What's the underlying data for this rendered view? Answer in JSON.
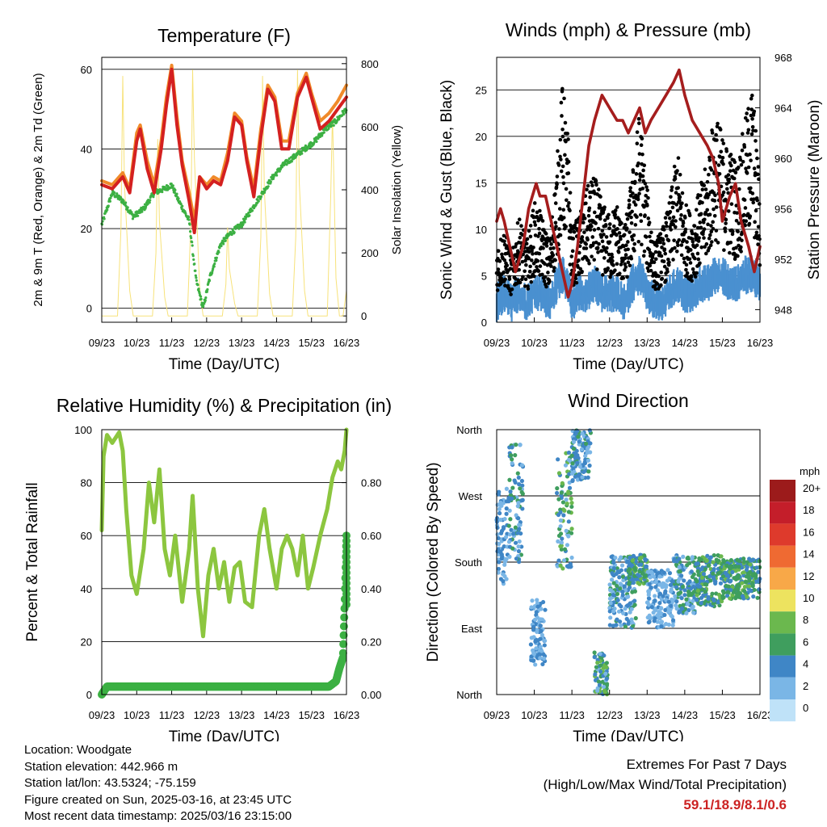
{
  "x_ticks": [
    "09/23",
    "10/23",
    "11/23",
    "12/23",
    "13/23",
    "14/23",
    "15/23",
    "16/23"
  ],
  "colors": {
    "red": "#d42020",
    "orange": "#f08a2a",
    "green": "#3cb043",
    "yellow": "#f7e27a",
    "maroon": "#a51d1d",
    "gust": "#000000",
    "wind": "#4a90d0",
    "rh": "#8cc63f",
    "precip": "#3cb043"
  },
  "chart_data": [
    {
      "id": "temp",
      "type": "line",
      "title": "Temperature (F)",
      "xlabel": "Time (Day/UTC)",
      "ylabel": "2m & 9m T (Red, Orange) & 2m Td (Green)",
      "y2label": "Solar Insolation (Yellow)",
      "ylim": [
        -3.5,
        63
      ],
      "y_ticks": [
        0,
        20,
        40,
        60
      ],
      "y2lim": [
        -20,
        820
      ],
      "y2_ticks": [
        0,
        200,
        400,
        600,
        800
      ],
      "grid": true,
      "series": [
        {
          "key": "t2m",
          "axis": "left",
          "color": "red",
          "x": [
            9,
            9.3,
            9.6,
            9.8,
            10.0,
            10.1,
            10.3,
            10.5,
            10.7,
            10.85,
            11.0,
            11.15,
            11.3,
            11.5,
            11.65,
            11.8,
            12.0,
            12.2,
            12.4,
            12.6,
            12.8,
            13.0,
            13.15,
            13.35,
            13.55,
            13.75,
            13.95,
            14.15,
            14.35,
            14.6,
            14.85,
            15.0,
            15.25,
            15.5,
            15.75,
            16.0
          ],
          "values": [
            31,
            30,
            33,
            29,
            42,
            45,
            35,
            29,
            40,
            51,
            60,
            46,
            36,
            27,
            19,
            33,
            30,
            32,
            31,
            37,
            48,
            46,
            37,
            28,
            43,
            55,
            52,
            40,
            40,
            53,
            58,
            53,
            45,
            47,
            50,
            53
          ]
        },
        {
          "key": "t9m",
          "axis": "left",
          "color": "orange",
          "x": [
            9,
            9.3,
            9.6,
            9.8,
            10.0,
            10.1,
            10.3,
            10.5,
            10.7,
            10.85,
            11.0,
            11.15,
            11.3,
            11.5,
            11.65,
            11.8,
            12.0,
            12.2,
            12.4,
            12.6,
            12.8,
            13.0,
            13.15,
            13.35,
            13.55,
            13.75,
            13.95,
            14.15,
            14.35,
            14.6,
            14.85,
            15.0,
            15.25,
            15.5,
            15.75,
            16.0
          ],
          "values": [
            32,
            31,
            34,
            30,
            44,
            46,
            37,
            31,
            42,
            53,
            61,
            48,
            37,
            29,
            22,
            33,
            31,
            33,
            32,
            39,
            49,
            47,
            38,
            30,
            45,
            56,
            53,
            42,
            42,
            54,
            59,
            54,
            47,
            49,
            52,
            56
          ]
        },
        {
          "key": "td2m",
          "axis": "left",
          "color": "green",
          "x": [
            9,
            9.3,
            9.6,
            9.9,
            10.2,
            10.5,
            10.8,
            11.0,
            11.2,
            11.5,
            11.7,
            11.9,
            12.1,
            12.4,
            12.7,
            13.0,
            13.3,
            13.6,
            13.9,
            14.2,
            14.5,
            14.8,
            15.1,
            15.4,
            15.7,
            16.0
          ],
          "values": [
            21,
            29,
            27,
            23,
            25,
            29,
            30,
            31,
            27,
            22,
            7,
            0,
            8,
            16,
            19,
            21,
            25,
            29,
            33,
            36,
            38,
            40,
            42,
            45,
            47,
            50
          ]
        },
        {
          "key": "solar",
          "axis": "right",
          "color": "yellow",
          "x": [
            9.0,
            9.05,
            9.15,
            9.3,
            9.45,
            9.55,
            9.6,
            9.65,
            9.8,
            9.9,
            10.0,
            10.05,
            10.15,
            10.3,
            10.45,
            10.55,
            10.6,
            10.65,
            10.8,
            10.9,
            11.0,
            11.05,
            11.15,
            11.3,
            11.45,
            11.55,
            11.6,
            11.65,
            11.8,
            11.9,
            12.0,
            12.05,
            12.15,
            12.3,
            12.45,
            12.55,
            12.6,
            12.65,
            12.8,
            12.9,
            13.0,
            13.05,
            13.15,
            13.3,
            13.45,
            13.55,
            13.6,
            13.65,
            13.8,
            13.9,
            14.0,
            14.05,
            14.15,
            14.3,
            14.45,
            14.55,
            14.6,
            14.65,
            14.8,
            14.9,
            15.0,
            15.05,
            15.15,
            15.3,
            15.45,
            15.55,
            15.6,
            15.7,
            15.8,
            15.9,
            16.0
          ],
          "values": [
            0,
            0,
            0,
            0,
            0,
            280,
            760,
            420,
            80,
            0,
            0,
            0,
            0,
            0,
            0,
            200,
            560,
            300,
            60,
            0,
            0,
            0,
            0,
            0,
            0,
            300,
            780,
            500,
            90,
            0,
            0,
            0,
            0,
            0,
            0,
            100,
            280,
            150,
            40,
            0,
            0,
            0,
            0,
            0,
            0,
            250,
            760,
            400,
            70,
            0,
            0,
            0,
            0,
            0,
            0,
            250,
            780,
            420,
            80,
            0,
            0,
            0,
            0,
            0,
            0,
            380,
            640,
            120,
            0,
            0,
            80
          ]
        }
      ]
    },
    {
      "id": "wind",
      "type": "line",
      "title": "Winds (mph) & Pressure (mb)",
      "xlabel": "Time (Day/UTC)",
      "ylabel": "Sonic Wind & Gust (Blue, Black)",
      "y2label": "Station Pressure (Maroon)",
      "ylim": [
        0,
        28.5
      ],
      "y_ticks": [
        0,
        5,
        10,
        15,
        20,
        25
      ],
      "y2lim": [
        947,
        968
      ],
      "y2_ticks": [
        948,
        952,
        956,
        960,
        964,
        968
      ],
      "grid": true,
      "series": [
        {
          "key": "gust",
          "axis": "left",
          "color": "gust",
          "kind": "scatter",
          "x": [
            9.0,
            9.2,
            9.4,
            9.6,
            9.8,
            10.0,
            10.2,
            10.4,
            10.6,
            10.75,
            10.9,
            11.0,
            11.2,
            11.4,
            11.6,
            11.8,
            12.0,
            12.2,
            12.4,
            12.6,
            12.8,
            13.0,
            13.2,
            13.4,
            13.6,
            13.8,
            14.0,
            14.2,
            14.4,
            14.6,
            14.8,
            15.0,
            15.2,
            15.4,
            15.6,
            15.8,
            16.0
          ],
          "values": [
            6,
            7,
            5,
            8,
            6,
            9,
            8,
            6,
            12,
            18,
            14,
            7,
            8,
            10,
            11,
            9,
            8,
            9,
            7,
            11,
            16,
            10,
            6,
            7,
            9,
            13,
            9,
            8,
            10,
            12,
            16,
            14,
            13,
            12,
            15,
            18,
            10
          ]
        },
        {
          "key": "sonic",
          "axis": "left",
          "color": "wind",
          "kind": "area-line",
          "x": [
            9.0,
            9.2,
            9.4,
            9.6,
            9.8,
            10.0,
            10.2,
            10.4,
            10.6,
            10.75,
            10.9,
            11.0,
            11.2,
            11.4,
            11.6,
            11.8,
            12.0,
            12.2,
            12.4,
            12.6,
            12.8,
            13.0,
            13.2,
            13.4,
            13.6,
            13.8,
            14.0,
            14.2,
            14.4,
            14.6,
            14.8,
            15.0,
            15.2,
            15.4,
            15.6,
            15.8,
            16.0
          ],
          "values": [
            2,
            3,
            2,
            3,
            2,
            3,
            3,
            2,
            4,
            5,
            4,
            2,
            3,
            3,
            4,
            3,
            3,
            3,
            2,
            4,
            5,
            3,
            2,
            2,
            3,
            4,
            3,
            3,
            4,
            4,
            5,
            5,
            4,
            4,
            5,
            5,
            4
          ]
        },
        {
          "key": "pressure",
          "axis": "right",
          "color": "maroon",
          "x": [
            9.0,
            9.1,
            9.2,
            9.35,
            9.5,
            9.7,
            9.85,
            9.95,
            10.05,
            10.15,
            10.3,
            10.45,
            10.6,
            10.75,
            10.9,
            11.0,
            11.15,
            11.3,
            11.45,
            11.6,
            11.8,
            12.0,
            12.2,
            12.35,
            12.5,
            12.65,
            12.8,
            12.95,
            13.1,
            13.3,
            13.5,
            13.7,
            13.85,
            14.0,
            14.2,
            14.4,
            14.6,
            14.75,
            14.9,
            15.0,
            15.2,
            15.35,
            15.5,
            15.7,
            15.85,
            16.0
          ],
          "values": [
            955,
            956,
            955,
            953,
            951,
            953,
            956,
            957,
            958,
            957,
            957,
            955,
            953,
            951,
            949,
            950,
            953,
            957,
            961,
            963,
            965,
            964,
            963,
            963,
            962,
            963,
            964,
            962,
            963,
            964,
            965,
            966,
            967,
            965,
            963,
            962,
            961,
            960,
            958,
            955,
            957,
            958,
            955,
            953,
            951,
            953
          ]
        }
      ]
    },
    {
      "id": "rh",
      "type": "line",
      "title": "Relative Humidity (%) & Precipitation (in)",
      "xlabel": "Time (Day/UTC)",
      "ylabel": "Percent & Total Rainfall",
      "ylim": [
        0,
        100
      ],
      "y_ticks": [
        0,
        20,
        40,
        60,
        80,
        100
      ],
      "y2lim": [
        0,
        1
      ],
      "y2_ticks": [
        "0.00",
        "0.20",
        "0.40",
        "0.60",
        "0.80"
      ],
      "grid": true,
      "series": [
        {
          "key": "rh",
          "axis": "left",
          "color": "rh",
          "x": [
            9.0,
            9.05,
            9.15,
            9.3,
            9.5,
            9.6,
            9.7,
            9.85,
            10.0,
            10.2,
            10.35,
            10.5,
            10.65,
            10.8,
            10.95,
            11.1,
            11.3,
            11.5,
            11.6,
            11.75,
            11.9,
            12.05,
            12.2,
            12.35,
            12.5,
            12.65,
            12.8,
            12.95,
            13.1,
            13.3,
            13.5,
            13.65,
            13.8,
            14.0,
            14.15,
            14.3,
            14.45,
            14.6,
            14.75,
            14.9,
            15.05,
            15.25,
            15.45,
            15.6,
            15.75,
            15.85,
            15.95,
            16.0
          ],
          "values": [
            62,
            90,
            98,
            95,
            99,
            92,
            70,
            45,
            38,
            55,
            80,
            65,
            85,
            55,
            45,
            60,
            35,
            55,
            75,
            40,
            22,
            45,
            55,
            40,
            50,
            35,
            48,
            50,
            35,
            33,
            60,
            70,
            55,
            40,
            55,
            60,
            55,
            45,
            60,
            40,
            48,
            60,
            70,
            82,
            88,
            85,
            92,
            100
          ]
        },
        {
          "key": "precip",
          "axis": "right",
          "color": "precip",
          "x": [
            9.0,
            9.1,
            9.15,
            15.5,
            15.7,
            15.8,
            15.9,
            15.95,
            16.0
          ],
          "values": [
            0.0,
            0.02,
            0.03,
            0.03,
            0.05,
            0.1,
            0.14,
            0.35,
            0.6
          ]
        }
      ]
    },
    {
      "id": "dir",
      "type": "scatter",
      "title": "Wind Direction",
      "xlabel": "Time (Day/UTC)",
      "ylabel": "Direction (Colored By Speed)",
      "ylim": [
        0,
        360
      ],
      "y_tick_labels": [
        "North",
        "East",
        "South",
        "West",
        "North"
      ],
      "legend": {
        "title": "mph",
        "labels": [
          "20+",
          "18",
          "16",
          "14",
          "12",
          "10",
          "8",
          "6",
          "4",
          "2",
          "0"
        ],
        "colors": [
          "#9c1b1b",
          "#c41e2a",
          "#de3a2c",
          "#ef6a32",
          "#f8a848",
          "#ede35f",
          "#6bb84e",
          "#3f9e5e",
          "#3f86c6",
          "#7ab6e6",
          "#bfe2f8"
        ]
      },
      "points_note": "direction in degrees and speed in mph",
      "groups": [
        {
          "x": [
            9.0,
            9.3
          ],
          "dir": [
            150,
            280
          ],
          "speed": [
            2,
            4
          ]
        },
        {
          "x": [
            9.3,
            9.7
          ],
          "dir": [
            180,
            340
          ],
          "speed": [
            2,
            6
          ]
        },
        {
          "x": [
            9.9,
            10.3
          ],
          "dir": [
            40,
            130
          ],
          "speed": [
            1,
            5
          ]
        },
        {
          "x": [
            10.6,
            11.0
          ],
          "dir": [
            170,
            330
          ],
          "speed": [
            2,
            8
          ]
        },
        {
          "x": [
            11.0,
            11.5
          ],
          "dir": [
            290,
            360
          ],
          "speed": [
            2,
            6
          ]
        },
        {
          "x": [
            11.6,
            11.95
          ],
          "dir": [
            0,
            60
          ],
          "speed": [
            2,
            8
          ]
        },
        {
          "x": [
            12.0,
            12.7
          ],
          "dir": [
            90,
            190
          ],
          "speed": [
            1,
            6
          ]
        },
        {
          "x": [
            12.5,
            13.0
          ],
          "dir": [
            150,
            190
          ],
          "speed": [
            3,
            8
          ]
        },
        {
          "x": [
            13.0,
            13.7
          ],
          "dir": [
            90,
            170
          ],
          "speed": [
            1,
            4
          ]
        },
        {
          "x": [
            13.7,
            14.3
          ],
          "dir": [
            110,
            190
          ],
          "speed": [
            2,
            7
          ]
        },
        {
          "x": [
            14.3,
            15.0
          ],
          "dir": [
            120,
            190
          ],
          "speed": [
            3,
            8
          ]
        },
        {
          "x": [
            15.0,
            16.0
          ],
          "dir": [
            130,
            185
          ],
          "speed": [
            3,
            8
          ]
        }
      ]
    }
  ],
  "info": {
    "location": "Location: Woodgate",
    "elevation": "Station elevation: 442.966 m",
    "latlon": "Station lat/lon: 43.5324; -75.159",
    "created": "Figure created on Sun, 2025-03-16, at 23:45 UTC",
    "latest": "Most recent data timestamp: 2025/03/16 23:15:00"
  },
  "extremes": {
    "line1": "Extremes For Past 7 Days",
    "line2": "(High/Low/Max Wind/Total Precipitation)",
    "values": "59.1/18.9/8.1/0.6"
  }
}
